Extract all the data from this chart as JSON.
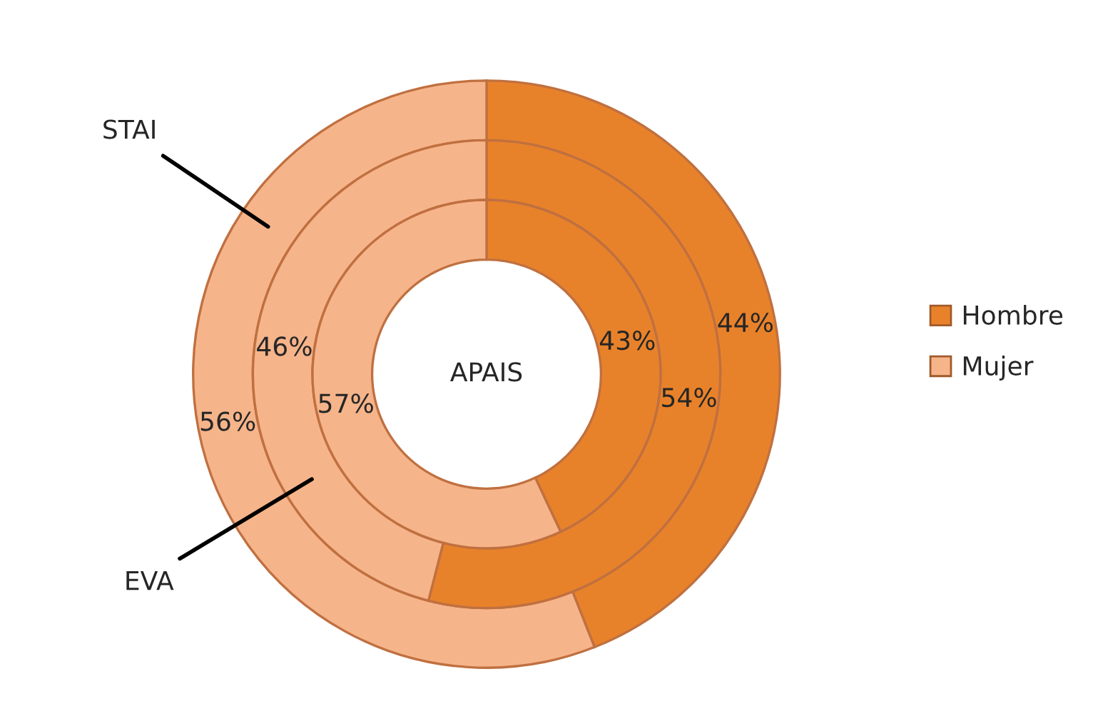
{
  "chart_data": {
    "type": "donut",
    "categories": [
      "Hombre",
      "Mujer"
    ],
    "colors": [
      "#e8822a",
      "#f6b48a"
    ],
    "legend": "right",
    "series": [
      {
        "name": "STAI",
        "values": [
          44,
          56
        ],
        "value_labels": [
          "44%",
          "56%"
        ]
      },
      {
        "name": "EVA",
        "values": [
          54,
          46
        ],
        "value_labels": [
          "54%",
          "46%"
        ]
      },
      {
        "name": "APAIS",
        "values": [
          43,
          57
        ],
        "value_labels": [
          "43%",
          "57%"
        ]
      }
    ]
  }
}
